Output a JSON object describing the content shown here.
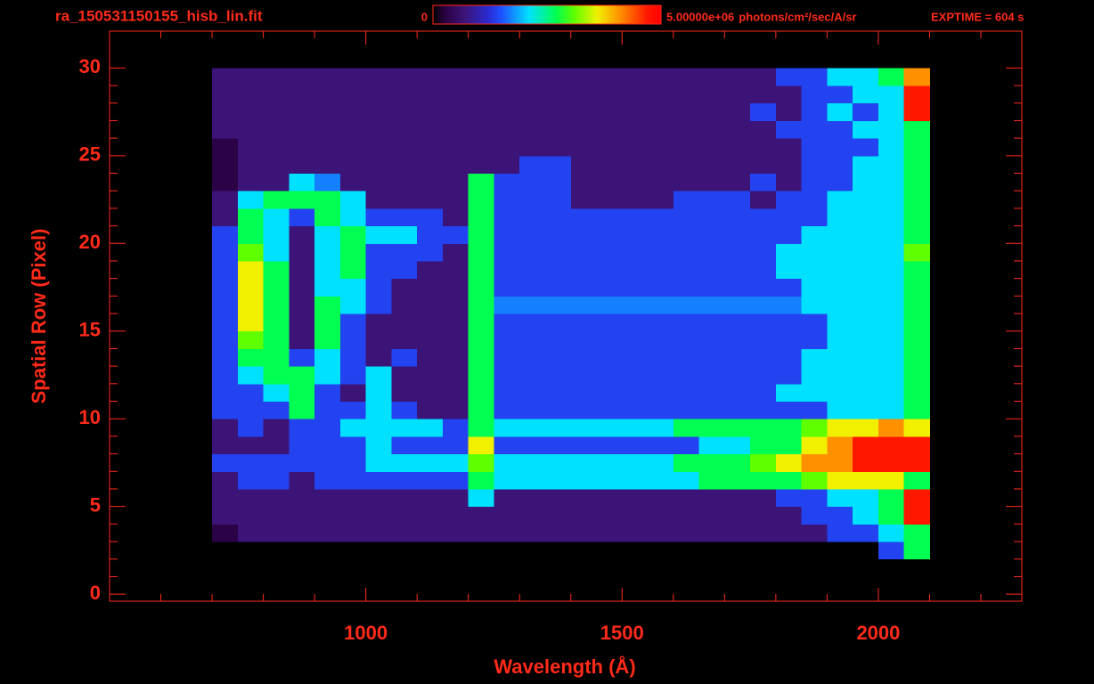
{
  "chart_data": {
    "type": "heatmap",
    "title": "ra_150531150155_hisb_lin.fit",
    "annotation": "EXPTIME = 604 s",
    "x_label": "Wavelength (Å)",
    "y_label": "Spatial Row (Pixel)",
    "xlim": [
      500,
      2280
    ],
    "ylim": [
      -0.4,
      32.1
    ],
    "xticks": [
      1000,
      1500,
      2000
    ],
    "xminorticks": [
      600,
      700,
      800,
      900,
      1100,
      1200,
      1300,
      1400,
      1600,
      1700,
      1800,
      1900,
      2100,
      2200
    ],
    "yticks": [
      0,
      5,
      10,
      15,
      20,
      25,
      30
    ],
    "yminorticks": [
      1,
      2,
      3,
      4,
      6,
      7,
      8,
      9,
      11,
      12,
      13,
      14,
      16,
      17,
      18,
      19,
      21,
      22,
      23,
      24,
      26,
      27,
      28,
      29
    ],
    "colorbar": {
      "lim": [
        0,
        5000000
      ],
      "ticks": [
        0,
        {
          "value": 5000000,
          "label": "5.00000e+06"
        }
      ],
      "label": "photons/cm²/sec/A/sr"
    },
    "x_bins": [
      700,
      750,
      800,
      850,
      900,
      950,
      1000,
      1050,
      1100,
      1150,
      1200,
      1250,
      1300,
      1350,
      1400,
      1450,
      1500,
      1550,
      1600,
      1650,
      1700,
      1750,
      1800,
      1850,
      1900,
      1950,
      2000,
      2050,
      2100
    ],
    "y_bins": [
      2,
      3,
      4,
      5,
      6,
      7,
      8,
      9,
      10,
      11,
      12,
      13,
      14,
      15,
      16,
      17,
      18,
      19,
      20,
      21,
      22,
      23,
      24,
      25,
      26,
      27,
      28,
      29,
      30
    ],
    "values": [
      [
        0,
        0,
        0,
        0,
        0,
        0,
        0,
        0,
        0,
        0,
        0,
        0,
        0,
        0,
        0,
        0,
        0,
        0,
        0,
        0,
        0,
        0,
        0,
        0,
        0,
        0,
        1400000.0,
        2700000.0
      ],
      [
        300000.0,
        700000.0,
        700000.0,
        700000.0,
        700000.0,
        700000.0,
        700000.0,
        700000.0,
        700000.0,
        700000.0,
        700000.0,
        700000.0,
        700000.0,
        700000.0,
        700000.0,
        700000.0,
        700000.0,
        700000.0,
        700000.0,
        700000.0,
        700000.0,
        700000.0,
        700000.0,
        700000.0,
        1400000.0,
        1400000.0,
        2100000.0,
        2700000.0
      ],
      [
        700000.0,
        700000.0,
        700000.0,
        700000.0,
        700000.0,
        700000.0,
        700000.0,
        700000.0,
        700000.0,
        700000.0,
        700000.0,
        700000.0,
        700000.0,
        700000.0,
        700000.0,
        700000.0,
        700000.0,
        700000.0,
        700000.0,
        700000.0,
        700000.0,
        700000.0,
        700000.0,
        1400000.0,
        1400000.0,
        2100000.0,
        2700000.0,
        4700000.0
      ],
      [
        700000.0,
        700000.0,
        700000.0,
        700000.0,
        700000.0,
        700000.0,
        700000.0,
        700000.0,
        700000.0,
        700000.0,
        2100000.0,
        700000.0,
        700000.0,
        700000.0,
        700000.0,
        700000.0,
        700000.0,
        700000.0,
        700000.0,
        700000.0,
        700000.0,
        700000.0,
        1400000.0,
        1400000.0,
        2100000.0,
        2100000.0,
        2700000.0,
        4700000.0
      ],
      [
        700000.0,
        1400000.0,
        1400000.0,
        700000.0,
        1400000.0,
        1400000.0,
        1400000.0,
        1400000.0,
        1400000.0,
        1400000.0,
        2700000.0,
        2100000.0,
        2100000.0,
        2100000.0,
        2100000.0,
        2100000.0,
        2100000.0,
        2100000.0,
        2100000.0,
        2700000.0,
        2700000.0,
        2700000.0,
        2700000.0,
        3100000.0,
        3600000.0,
        3600000.0,
        3600000.0,
        2700000.0
      ],
      [
        1400000.0,
        1400000.0,
        1400000.0,
        1400000.0,
        1400000.0,
        1400000.0,
        2100000.0,
        2100000.0,
        2100000.0,
        2100000.0,
        3100000.0,
        2100000.0,
        2100000.0,
        2100000.0,
        2100000.0,
        2100000.0,
        2100000.0,
        2100000.0,
        2700000.0,
        2700000.0,
        2700000.0,
        3100000.0,
        3600000.0,
        4100000.0,
        4100000.0,
        4700000.0,
        4700000.0,
        4700000.0
      ],
      [
        700000.0,
        700000.0,
        700000.0,
        1400000.0,
        1400000.0,
        1400000.0,
        2100000.0,
        1400000.0,
        1400000.0,
        1400000.0,
        3600000.0,
        1400000.0,
        1400000.0,
        1400000.0,
        1400000.0,
        1400000.0,
        1400000.0,
        1400000.0,
        1400000.0,
        2100000.0,
        2100000.0,
        2700000.0,
        2700000.0,
        3600000.0,
        4100000.0,
        4700000.0,
        4700000.0,
        4700000.0
      ],
      [
        700000.0,
        1400000.0,
        700000.0,
        1400000.0,
        1400000.0,
        2100000.0,
        2100000.0,
        2100000.0,
        2100000.0,
        1400000.0,
        2700000.0,
        2100000.0,
        2100000.0,
        2100000.0,
        2100000.0,
        2100000.0,
        2100000.0,
        2100000.0,
        2700000.0,
        2700000.0,
        2700000.0,
        2700000.0,
        2700000.0,
        3100000.0,
        3600000.0,
        3600000.0,
        4100000.0,
        3600000.0
      ],
      [
        1400000.0,
        1400000.0,
        1400000.0,
        2700000.0,
        1400000.0,
        1400000.0,
        2100000.0,
        1400000.0,
        700000.0,
        700000.0,
        2700000.0,
        1400000.0,
        1400000.0,
        1400000.0,
        1400000.0,
        1400000.0,
        1400000.0,
        1400000.0,
        1400000.0,
        1400000.0,
        1400000.0,
        1400000.0,
        1400000.0,
        1400000.0,
        2100000.0,
        2100000.0,
        2100000.0,
        2700000.0
      ],
      [
        1400000.0,
        1400000.0,
        2100000.0,
        2700000.0,
        1400000.0,
        700000.0,
        2100000.0,
        700000.0,
        700000.0,
        700000.0,
        2700000.0,
        1400000.0,
        1400000.0,
        1400000.0,
        1400000.0,
        1400000.0,
        1400000.0,
        1400000.0,
        1400000.0,
        1400000.0,
        1400000.0,
        1400000.0,
        2100000.0,
        2100000.0,
        2100000.0,
        2100000.0,
        2100000.0,
        2700000.0
      ],
      [
        1400000.0,
        2100000.0,
        2700000.0,
        2700000.0,
        2100000.0,
        1400000.0,
        2100000.0,
        700000.0,
        700000.0,
        700000.0,
        2700000.0,
        1400000.0,
        1400000.0,
        1400000.0,
        1400000.0,
        1400000.0,
        1400000.0,
        1400000.0,
        1400000.0,
        1400000.0,
        1400000.0,
        1400000.0,
        1400000.0,
        2100000.0,
        2100000.0,
        2100000.0,
        2100000.0,
        2700000.0
      ],
      [
        1400000.0,
        2700000.0,
        2700000.0,
        1400000.0,
        2100000.0,
        1400000.0,
        700000.0,
        1400000.0,
        700000.0,
        700000.0,
        2700000.0,
        1400000.0,
        1400000.0,
        1400000.0,
        1400000.0,
        1400000.0,
        1400000.0,
        1400000.0,
        1400000.0,
        1400000.0,
        1400000.0,
        1400000.0,
        1400000.0,
        2100000.0,
        2100000.0,
        2100000.0,
        2100000.0,
        2700000.0
      ],
      [
        1400000.0,
        3100000.0,
        2700000.0,
        700000.0,
        2700000.0,
        1400000.0,
        700000.0,
        700000.0,
        700000.0,
        700000.0,
        2700000.0,
        1400000.0,
        1400000.0,
        1400000.0,
        1400000.0,
        1400000.0,
        1400000.0,
        1400000.0,
        1400000.0,
        1400000.0,
        1400000.0,
        1400000.0,
        1400000.0,
        1400000.0,
        2100000.0,
        2100000.0,
        2100000.0,
        2700000.0
      ],
      [
        1400000.0,
        3600000.0,
        2700000.0,
        700000.0,
        2700000.0,
        1400000.0,
        700000.0,
        700000.0,
        700000.0,
        700000.0,
        2700000.0,
        1400000.0,
        1400000.0,
        1400000.0,
        1400000.0,
        1400000.0,
        1400000.0,
        1400000.0,
        1400000.0,
        1400000.0,
        1400000.0,
        1400000.0,
        1400000.0,
        1400000.0,
        2100000.0,
        2100000.0,
        2100000.0,
        2700000.0
      ],
      [
        1400000.0,
        3600000.0,
        2700000.0,
        700000.0,
        2700000.0,
        2100000.0,
        1400000.0,
        700000.0,
        700000.0,
        700000.0,
        2700000.0,
        1700000.0,
        1700000.0,
        1700000.0,
        1700000.0,
        1700000.0,
        1700000.0,
        1700000.0,
        1700000.0,
        1700000.0,
        1700000.0,
        1700000.0,
        1700000.0,
        2100000.0,
        2100000.0,
        2100000.0,
        2100000.0,
        2700000.0
      ],
      [
        1400000.0,
        3600000.0,
        2700000.0,
        700000.0,
        2100000.0,
        2100000.0,
        1400000.0,
        700000.0,
        700000.0,
        700000.0,
        2700000.0,
        1400000.0,
        1400000.0,
        1400000.0,
        1400000.0,
        1400000.0,
        1400000.0,
        1400000.0,
        1400000.0,
        1400000.0,
        1400000.0,
        1400000.0,
        1400000.0,
        2100000.0,
        2100000.0,
        2100000.0,
        2100000.0,
        2700000.0
      ],
      [
        1400000.0,
        3600000.0,
        2700000.0,
        700000.0,
        2100000.0,
        2700000.0,
        1400000.0,
        1400000.0,
        700000.0,
        700000.0,
        2700000.0,
        1400000.0,
        1400000.0,
        1400000.0,
        1400000.0,
        1400000.0,
        1400000.0,
        1400000.0,
        1400000.0,
        1400000.0,
        1400000.0,
        1400000.0,
        2100000.0,
        2100000.0,
        2100000.0,
        2100000.0,
        2100000.0,
        2700000.0
      ],
      [
        1400000.0,
        3100000.0,
        2100000.0,
        700000.0,
        2100000.0,
        2700000.0,
        1400000.0,
        1400000.0,
        1400000.0,
        700000.0,
        2700000.0,
        1400000.0,
        1400000.0,
        1400000.0,
        1400000.0,
        1400000.0,
        1400000.0,
        1400000.0,
        1400000.0,
        1400000.0,
        1400000.0,
        1400000.0,
        2100000.0,
        2100000.0,
        2100000.0,
        2100000.0,
        2100000.0,
        3100000.0
      ],
      [
        1400000.0,
        2700000.0,
        2100000.0,
        700000.0,
        2100000.0,
        2700000.0,
        2100000.0,
        2100000.0,
        1400000.0,
        1400000.0,
        2700000.0,
        1400000.0,
        1400000.0,
        1400000.0,
        1400000.0,
        1400000.0,
        1400000.0,
        1400000.0,
        1400000.0,
        1400000.0,
        1400000.0,
        1400000.0,
        1400000.0,
        2100000.0,
        2100000.0,
        2100000.0,
        2100000.0,
        2700000.0
      ],
      [
        700000.0,
        2700000.0,
        2100000.0,
        1400000.0,
        2700000.0,
        2100000.0,
        1400000.0,
        1400000.0,
        1400000.0,
        700000.0,
        2700000.0,
        1400000.0,
        1400000.0,
        1400000.0,
        1400000.0,
        1400000.0,
        1400000.0,
        1400000.0,
        1400000.0,
        1400000.0,
        1400000.0,
        1400000.0,
        1400000.0,
        1400000.0,
        2100000.0,
        2100000.0,
        2100000.0,
        2700000.0
      ],
      [
        700000.0,
        2100000.0,
        2700000.0,
        2700000.0,
        2700000.0,
        2100000.0,
        700000.0,
        700000.0,
        700000.0,
        700000.0,
        2700000.0,
        1400000.0,
        1400000.0,
        1400000.0,
        700000.0,
        700000.0,
        700000.0,
        700000.0,
        1400000.0,
        1400000.0,
        1400000.0,
        700000.0,
        1400000.0,
        1400000.0,
        2100000.0,
        2100000.0,
        2100000.0,
        2700000.0
      ],
      [
        300000.0,
        700000.0,
        700000.0,
        2100000.0,
        1700000.0,
        700000.0,
        700000.0,
        700000.0,
        700000.0,
        700000.0,
        2700000.0,
        1400000.0,
        1400000.0,
        1400000.0,
        700000.0,
        700000.0,
        700000.0,
        700000.0,
        700000.0,
        700000.0,
        700000.0,
        1400000.0,
        700000.0,
        1400000.0,
        1400000.0,
        2100000.0,
        2100000.0,
        2700000.0
      ],
      [
        300000.0,
        700000.0,
        700000.0,
        700000.0,
        700000.0,
        700000.0,
        700000.0,
        700000.0,
        700000.0,
        700000.0,
        700000.0,
        700000.0,
        1400000.0,
        1400000.0,
        700000.0,
        700000.0,
        700000.0,
        700000.0,
        700000.0,
        700000.0,
        700000.0,
        700000.0,
        700000.0,
        1400000.0,
        1400000.0,
        2100000.0,
        2100000.0,
        2700000.0
      ],
      [
        300000.0,
        700000.0,
        700000.0,
        700000.0,
        700000.0,
        700000.0,
        700000.0,
        700000.0,
        700000.0,
        700000.0,
        700000.0,
        700000.0,
        700000.0,
        700000.0,
        700000.0,
        700000.0,
        700000.0,
        700000.0,
        700000.0,
        700000.0,
        700000.0,
        700000.0,
        700000.0,
        1400000.0,
        1400000.0,
        1400000.0,
        2100000.0,
        2700000.0
      ],
      [
        700000.0,
        700000.0,
        700000.0,
        700000.0,
        700000.0,
        700000.0,
        700000.0,
        700000.0,
        700000.0,
        700000.0,
        700000.0,
        700000.0,
        700000.0,
        700000.0,
        700000.0,
        700000.0,
        700000.0,
        700000.0,
        700000.0,
        700000.0,
        700000.0,
        700000.0,
        1400000.0,
        1400000.0,
        1400000.0,
        2100000.0,
        2100000.0,
        2700000.0
      ],
      [
        700000.0,
        700000.0,
        700000.0,
        700000.0,
        700000.0,
        700000.0,
        700000.0,
        700000.0,
        700000.0,
        700000.0,
        700000.0,
        700000.0,
        700000.0,
        700000.0,
        700000.0,
        700000.0,
        700000.0,
        700000.0,
        700000.0,
        700000.0,
        700000.0,
        1400000.0,
        700000.0,
        1400000.0,
        2100000.0,
        1400000.0,
        2100000.0,
        4700000.0
      ],
      [
        700000.0,
        700000.0,
        700000.0,
        700000.0,
        700000.0,
        700000.0,
        700000.0,
        700000.0,
        700000.0,
        700000.0,
        700000.0,
        700000.0,
        700000.0,
        700000.0,
        700000.0,
        700000.0,
        700000.0,
        700000.0,
        700000.0,
        700000.0,
        700000.0,
        700000.0,
        700000.0,
        1400000.0,
        1400000.0,
        2100000.0,
        2100000.0,
        4700000.0
      ],
      [
        700000.0,
        700000.0,
        700000.0,
        700000.0,
        700000.0,
        700000.0,
        700000.0,
        700000.0,
        700000.0,
        700000.0,
        700000.0,
        700000.0,
        700000.0,
        700000.0,
        700000.0,
        700000.0,
        700000.0,
        700000.0,
        700000.0,
        700000.0,
        700000.0,
        700000.0,
        1400000.0,
        1400000.0,
        2100000.0,
        2100000.0,
        2700000.0,
        4100000.0
      ]
    ]
  }
}
